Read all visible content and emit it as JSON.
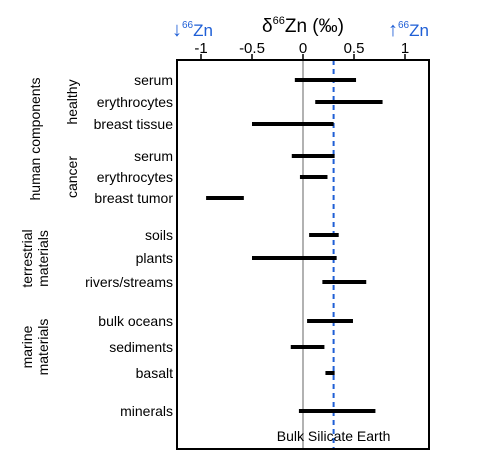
{
  "chart_data": {
    "type": "range",
    "title": "δ⁶⁶Zn (‰)",
    "title_parts": {
      "delta": "δ",
      "mass": "66",
      "element": "Zn (‰)"
    },
    "direction_left": {
      "arrow": "↓",
      "mass": "66",
      "element": "Zn"
    },
    "direction_right": {
      "arrow": "↑",
      "mass": "66",
      "element": "Zn"
    },
    "xlim": [
      -1.25,
      1.25
    ],
    "xticks": [
      -1,
      -0.5,
      0,
      0.5,
      1
    ],
    "xtick_labels": [
      "-1",
      "-0.5",
      "0",
      "0.5",
      "1"
    ],
    "reference_lines": [
      {
        "x": 0,
        "style": "solid",
        "color": "#999999",
        "label": ""
      },
      {
        "x": 0.3,
        "style": "dashed",
        "color": "#1f5fd6",
        "label": "Bulk Silicate Earth"
      }
    ],
    "categories": [
      {
        "label": "serum",
        "min": -0.08,
        "max": 0.52
      },
      {
        "label": "erythrocytes",
        "min": 0.12,
        "max": 0.78
      },
      {
        "label": "breast tissue",
        "min": -0.5,
        "max": 0.3
      },
      {
        "label": "serum",
        "min": -0.11,
        "max": 0.31
      },
      {
        "label": "erythrocytes",
        "min": -0.03,
        "max": 0.24
      },
      {
        "label": "breast tumor",
        "min": -0.95,
        "max": -0.58
      },
      {
        "label": "soils",
        "min": 0.06,
        "max": 0.35
      },
      {
        "label": "plants",
        "min": -0.5,
        "max": 0.33
      },
      {
        "label": "rivers/streams",
        "min": 0.19,
        "max": 0.62
      },
      {
        "label": "bulk oceans",
        "min": 0.04,
        "max": 0.49
      },
      {
        "label": "sediments",
        "min": -0.12,
        "max": 0.21
      },
      {
        "label": "basalt",
        "min": 0.22,
        "max": 0.31
      },
      {
        "label": "minerals",
        "min": -0.04,
        "max": 0.71
      }
    ],
    "groups": [
      {
        "label": "human components",
        "first": 0,
        "last": 5
      },
      {
        "label": "terrestrial materials",
        "first": 6,
        "last": 8
      },
      {
        "label": "marine materials",
        "first": 9,
        "last": 11
      }
    ],
    "subgroups": [
      {
        "label": "healthy",
        "first": 0,
        "last": 2
      },
      {
        "label": "cancer",
        "first": 3,
        "last": 5
      }
    ]
  }
}
